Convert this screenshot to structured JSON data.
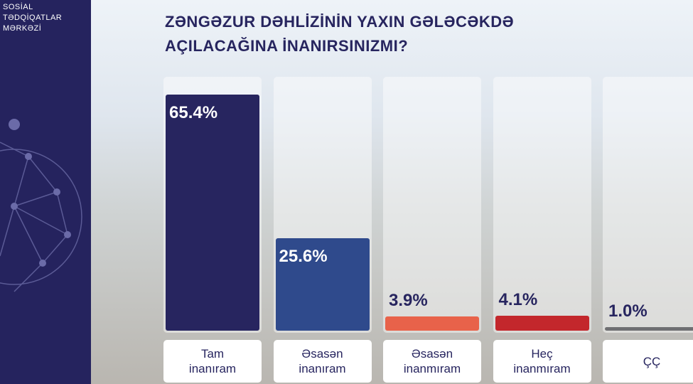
{
  "brand": [
    "SOSİAL",
    "TƏDQİQATLAR",
    "MƏRKƏZİ"
  ],
  "chart_data": {
    "type": "bar",
    "title": "ZƏNGƏZUR DƏHLİZİNİN YAXIN GƏLƏCƏKDƏ AÇILACAĞINA İNANIRSINIZMI?",
    "categories": [
      "Tam inanıram",
      "Əsasən inanıram",
      "Əsasən inanmıram",
      "Heç inanmıram",
      "ÇÇ"
    ],
    "values": [
      65.4,
      25.6,
      3.9,
      4.1,
      1.0
    ],
    "value_labels": [
      "65.4%",
      "25.6%",
      "3.9%",
      "4.1%",
      "1.0%"
    ],
    "colors": [
      "#27255f",
      "#2f4a8c",
      "#e8624a",
      "#c3272c",
      "#6f6f72"
    ]
  }
}
